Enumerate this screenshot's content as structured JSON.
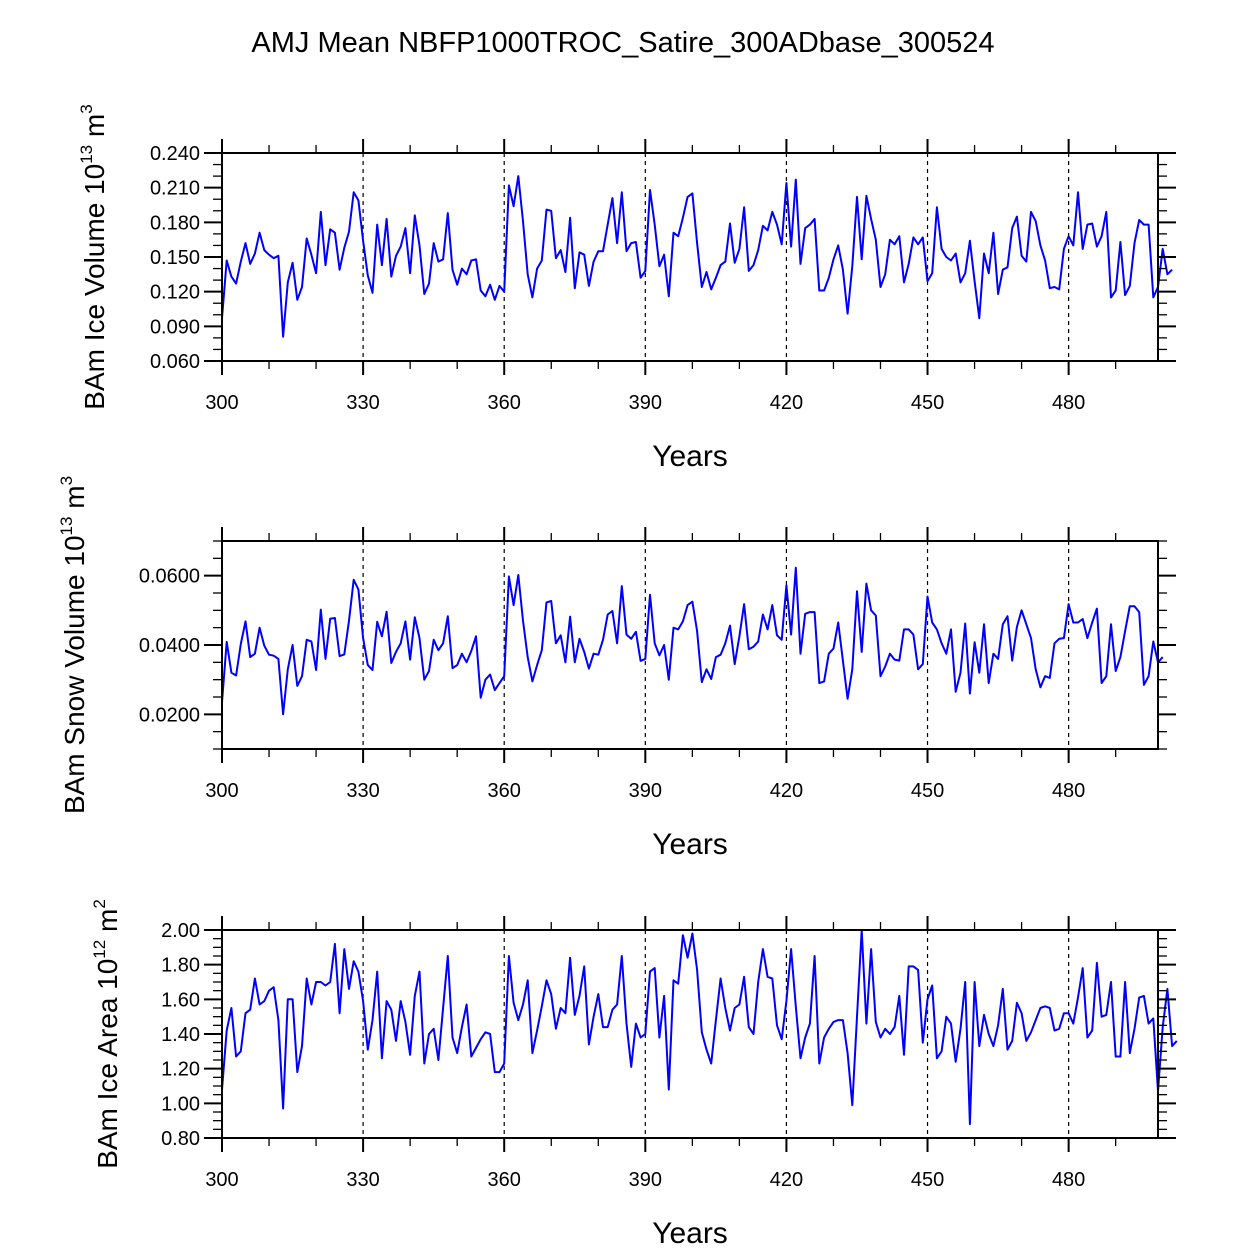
{
  "title": "AMJ Mean NBFP1000TROC_Satire_300ADbase_300524",
  "line_color": "#0000ff",
  "chart_data": [
    {
      "type": "line",
      "title": "",
      "xlabel": "Years",
      "ylabel": "BAm Ice Volume 10",
      "ylabel_exp": "13",
      "ylabel_unit": " m",
      "ylabel_unit_exp": "3",
      "xlim": [
        300,
        499
      ],
      "ylim": [
        0.06,
        0.24
      ],
      "xticks": [
        300,
        330,
        360,
        390,
        420,
        450,
        480
      ],
      "xtick_labels": [
        "300",
        "330",
        "360",
        "390",
        "420",
        "450",
        "480"
      ],
      "yticks": [
        0.06,
        0.09,
        0.12,
        0.15,
        0.18,
        0.21,
        0.24
      ],
      "ytick_labels": [
        "0.060",
        "0.090",
        "0.120",
        "0.150",
        "0.180",
        "0.210",
        "0.240"
      ],
      "yminor_step": 0.01,
      "vlines": [
        330,
        360,
        390,
        420,
        450,
        480
      ],
      "x_start": 300,
      "values": [
        0.097,
        0.147,
        0.133,
        0.127,
        0.146,
        0.162,
        0.144,
        0.153,
        0.171,
        0.156,
        0.152,
        0.149,
        0.151,
        0.081,
        0.128,
        0.145,
        0.113,
        0.124,
        0.166,
        0.152,
        0.136,
        0.189,
        0.143,
        0.174,
        0.171,
        0.139,
        0.158,
        0.172,
        0.206,
        0.199,
        0.164,
        0.134,
        0.119,
        0.178,
        0.143,
        0.183,
        0.133,
        0.151,
        0.159,
        0.175,
        0.136,
        0.186,
        0.16,
        0.118,
        0.127,
        0.162,
        0.146,
        0.148,
        0.188,
        0.139,
        0.126,
        0.14,
        0.135,
        0.147,
        0.148,
        0.121,
        0.116,
        0.126,
        0.113,
        0.125,
        0.12,
        0.212,
        0.194,
        0.22,
        0.181,
        0.135,
        0.115,
        0.14,
        0.147,
        0.191,
        0.19,
        0.149,
        0.156,
        0.137,
        0.184,
        0.123,
        0.154,
        0.152,
        0.125,
        0.146,
        0.155,
        0.155,
        0.178,
        0.201,
        0.162,
        0.206,
        0.155,
        0.162,
        0.163,
        0.132,
        0.138,
        0.208,
        0.178,
        0.142,
        0.152,
        0.116,
        0.171,
        0.168,
        0.184,
        0.202,
        0.205,
        0.162,
        0.124,
        0.137,
        0.122,
        0.132,
        0.143,
        0.146,
        0.179,
        0.145,
        0.157,
        0.193,
        0.138,
        0.143,
        0.156,
        0.177,
        0.173,
        0.189,
        0.178,
        0.161,
        0.214,
        0.159,
        0.217,
        0.144,
        0.175,
        0.178,
        0.183,
        0.121,
        0.121,
        0.132,
        0.148,
        0.16,
        0.139,
        0.101,
        0.142,
        0.202,
        0.148,
        0.203,
        0.183,
        0.165,
        0.124,
        0.135,
        0.165,
        0.161,
        0.168,
        0.128,
        0.144,
        0.167,
        0.161,
        0.167,
        0.129,
        0.136,
        0.193,
        0.157,
        0.15,
        0.147,
        0.153,
        0.128,
        0.136,
        0.164,
        0.129,
        0.097,
        0.153,
        0.136,
        0.171,
        0.118,
        0.139,
        0.141,
        0.175,
        0.185,
        0.151,
        0.146,
        0.189,
        0.181,
        0.16,
        0.147,
        0.123,
        0.124,
        0.122,
        0.157,
        0.168,
        0.16,
        0.206,
        0.157,
        0.178,
        0.179,
        0.159,
        0.168,
        0.189,
        0.115,
        0.121,
        0.163,
        0.117,
        0.125,
        0.162,
        0.182,
        0.178,
        0.178,
        0.115,
        0.124,
        0.157,
        0.135,
        0.139
      ]
    },
    {
      "type": "line",
      "title": "",
      "xlabel": "Years",
      "ylabel": "BAm Snow Volume 10",
      "ylabel_exp": "13",
      "ylabel_unit": " m",
      "ylabel_unit_exp": "3",
      "xlim": [
        300,
        499
      ],
      "ylim": [
        0.01,
        0.07
      ],
      "xticks": [
        300,
        330,
        360,
        390,
        420,
        450,
        480
      ],
      "xtick_labels": [
        "300",
        "330",
        "360",
        "390",
        "420",
        "450",
        "480"
      ],
      "yticks": [
        0.02,
        0.04,
        0.06
      ],
      "ytick_labels": [
        "0.0200",
        "0.0400",
        "0.0600"
      ],
      "yminor_step": 0.005,
      "vlines": [
        330,
        360,
        390,
        420,
        450,
        480
      ],
      "x_start": 300,
      "values": [
        0.0235,
        0.0409,
        0.032,
        0.0312,
        0.0403,
        0.0468,
        0.0365,
        0.0375,
        0.045,
        0.0398,
        0.0372,
        0.0369,
        0.036,
        0.02,
        0.033,
        0.04,
        0.0282,
        0.031,
        0.0415,
        0.041,
        0.0328,
        0.0502,
        0.036,
        0.0476,
        0.0478,
        0.0368,
        0.0373,
        0.047,
        0.0588,
        0.056,
        0.042,
        0.0342,
        0.0328,
        0.0467,
        0.0425,
        0.0496,
        0.0348,
        0.038,
        0.0405,
        0.0468,
        0.0358,
        0.048,
        0.042,
        0.03,
        0.0325,
        0.0415,
        0.0385,
        0.0405,
        0.0483,
        0.0333,
        0.0342,
        0.0375,
        0.035,
        0.0383,
        0.0425,
        0.0248,
        0.03,
        0.0315,
        0.027,
        0.029,
        0.031,
        0.0598,
        0.0515,
        0.0602,
        0.047,
        0.0365,
        0.0295,
        0.0342,
        0.0385,
        0.0523,
        0.0527,
        0.0405,
        0.0428,
        0.035,
        0.0482,
        0.035,
        0.0418,
        0.038,
        0.0332,
        0.0375,
        0.0372,
        0.0415,
        0.0488,
        0.0498,
        0.0405,
        0.057,
        0.043,
        0.0418,
        0.0438,
        0.0354,
        0.036,
        0.0545,
        0.0405,
        0.037,
        0.04,
        0.03,
        0.045,
        0.0445,
        0.0468,
        0.0515,
        0.0525,
        0.044,
        0.0293,
        0.033,
        0.0302,
        0.0365,
        0.0372,
        0.0405,
        0.0456,
        0.0345,
        0.0425,
        0.0518,
        0.0388,
        0.0395,
        0.041,
        0.0488,
        0.0445,
        0.0515,
        0.0428,
        0.0415,
        0.0572,
        0.043,
        0.0623,
        0.0375,
        0.049,
        0.0495,
        0.0495,
        0.029,
        0.0295,
        0.0375,
        0.039,
        0.0465,
        0.0355,
        0.0245,
        0.033,
        0.0555,
        0.038,
        0.0577,
        0.05,
        0.0485,
        0.031,
        0.0338,
        0.0375,
        0.0358,
        0.0355,
        0.0445,
        0.0445,
        0.043,
        0.033,
        0.0345,
        0.054,
        0.0465,
        0.0445,
        0.0405,
        0.0375,
        0.0445,
        0.0265,
        0.032,
        0.0462,
        0.026,
        0.0408,
        0.032,
        0.046,
        0.029,
        0.0375,
        0.036,
        0.046,
        0.0483,
        0.0355,
        0.0452,
        0.05,
        0.046,
        0.042,
        0.033,
        0.0278,
        0.031,
        0.0305,
        0.0405,
        0.0418,
        0.042,
        0.0518,
        0.0465,
        0.0465,
        0.0475,
        0.042,
        0.0465,
        0.0505,
        0.029,
        0.031,
        0.046,
        0.0325,
        0.0365,
        0.044,
        0.0512,
        0.0512,
        0.0495,
        0.0285,
        0.031,
        0.041,
        0.035,
        0.0365
      ]
    },
    {
      "type": "line",
      "title": "",
      "xlabel": "Years",
      "ylabel": "BAm Ice Area 10",
      "ylabel_exp": "12",
      "ylabel_unit": " m",
      "ylabel_unit_exp": "2",
      "xlim": [
        300,
        499
      ],
      "ylim": [
        0.8,
        2.0
      ],
      "xticks": [
        300,
        330,
        360,
        390,
        420,
        450,
        480
      ],
      "xtick_labels": [
        "300",
        "330",
        "360",
        "390",
        "420",
        "450",
        "480"
      ],
      "yticks": [
        0.8,
        1.0,
        1.2,
        1.4,
        1.6,
        1.8,
        2.0
      ],
      "ytick_labels": [
        "0.80",
        "1.00",
        "1.20",
        "1.40",
        "1.60",
        "1.80",
        "2.00"
      ],
      "yminor_step": 0.05,
      "vlines": [
        330,
        360,
        390,
        420,
        450,
        480
      ],
      "x_start": 300,
      "values": [
        1.08,
        1.42,
        1.55,
        1.27,
        1.3,
        1.52,
        1.54,
        1.72,
        1.57,
        1.59,
        1.65,
        1.67,
        1.48,
        0.97,
        1.6,
        1.6,
        1.18,
        1.33,
        1.72,
        1.57,
        1.7,
        1.7,
        1.68,
        1.7,
        1.92,
        1.52,
        1.89,
        1.66,
        1.82,
        1.76,
        1.59,
        1.31,
        1.48,
        1.76,
        1.26,
        1.59,
        1.54,
        1.36,
        1.59,
        1.47,
        1.28,
        1.62,
        1.76,
        1.23,
        1.4,
        1.43,
        1.25,
        1.55,
        1.85,
        1.38,
        1.29,
        1.44,
        1.57,
        1.27,
        1.32,
        1.37,
        1.41,
        1.4,
        1.18,
        1.18,
        1.23,
        1.85,
        1.58,
        1.48,
        1.57,
        1.71,
        1.29,
        1.42,
        1.56,
        1.71,
        1.63,
        1.43,
        1.55,
        1.52,
        1.84,
        1.51,
        1.62,
        1.79,
        1.34,
        1.5,
        1.63,
        1.44,
        1.44,
        1.54,
        1.57,
        1.85,
        1.46,
        1.21,
        1.46,
        1.38,
        1.4,
        1.76,
        1.78,
        1.38,
        1.62,
        1.08,
        1.71,
        1.69,
        1.97,
        1.84,
        1.98,
        1.77,
        1.41,
        1.31,
        1.23,
        1.48,
        1.72,
        1.55,
        1.42,
        1.55,
        1.57,
        1.73,
        1.44,
        1.4,
        1.7,
        1.89,
        1.73,
        1.72,
        1.45,
        1.37,
        1.59,
        1.89,
        1.56,
        1.26,
        1.38,
        1.46,
        1.85,
        1.23,
        1.38,
        1.43,
        1.47,
        1.48,
        1.48,
        1.29,
        0.99,
        1.5,
        2.0,
        1.46,
        1.89,
        1.47,
        1.38,
        1.43,
        1.4,
        1.44,
        1.62,
        1.28,
        1.79,
        1.79,
        1.77,
        1.35,
        1.6,
        1.68,
        1.26,
        1.3,
        1.5,
        1.46,
        1.24,
        1.43,
        1.7,
        0.88,
        1.7,
        1.33,
        1.51,
        1.4,
        1.33,
        1.45,
        1.66,
        1.31,
        1.36,
        1.58,
        1.52,
        1.36,
        1.41,
        1.48,
        1.55,
        1.56,
        1.55,
        1.42,
        1.43,
        1.52,
        1.52,
        1.46,
        1.61,
        1.78,
        1.38,
        1.42,
        1.81,
        1.5,
        1.51,
        1.7,
        1.27,
        1.27,
        1.7,
        1.29,
        1.43,
        1.61,
        1.62,
        1.46,
        1.49,
        1.07,
        1.44,
        1.66,
        1.33,
        1.36
      ]
    }
  ]
}
